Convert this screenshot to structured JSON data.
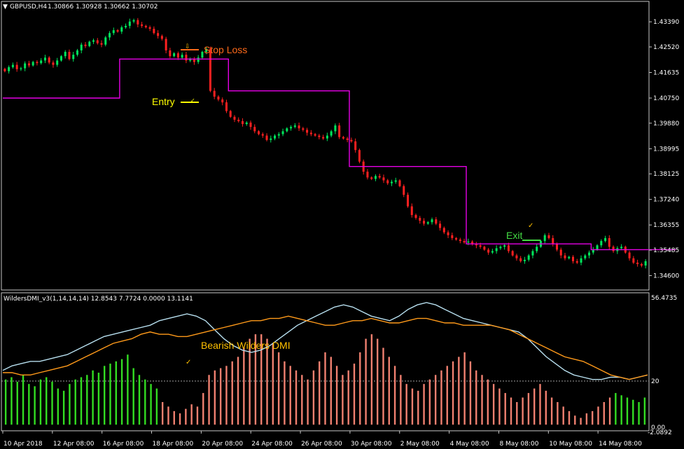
{
  "main_header": {
    "symbol_label": "GBPUSD,H4",
    "ohlc_label": "1.30866 1.30928 1.30662 1.30702"
  },
  "price_axis": [
    "1.43390",
    "1.42520",
    "1.41635",
    "1.40750",
    "1.39880",
    "1.38995",
    "1.38125",
    "1.37240",
    "1.36355",
    "1.35485",
    "1.34600"
  ],
  "annotations": {
    "stop_loss": "Stop Loss",
    "entry": "Entry",
    "exit": "Exit",
    "bearish_dmi": "Bearish Wilders DMI"
  },
  "indicator_header": {
    "label": "WildersDMI_v3(1,14,14,14) 12.8543 7.7724 0.0000 13.1141"
  },
  "indicator_axis": {
    "top": "56.4735",
    "level": "20",
    "bottom": "-2.0892",
    "bottom_alt": "0.00"
  },
  "time_axis": [
    "10 Apr 2018",
    "12 Apr 08:00",
    "16 Apr 08:00",
    "18 Apr 08:00",
    "20 Apr 08:00",
    "24 Apr 08:00",
    "26 Apr 08:00",
    "30 Apr 08:00",
    "2 May 08:00",
    "4 May 08:00",
    "8 May 08:00",
    "10 May 08:00",
    "14 May 08:00"
  ],
  "colors": {
    "background": "#000000",
    "bull_candle": "#00e65c",
    "bear_candle": "#ff2020",
    "stop_line": "#e600e6",
    "plus_di": "#b8e0f0",
    "minus_di": "#ff9a1a",
    "hist_bull": "#33dd22",
    "hist_bear": "#f08070",
    "stop_loss_text": "#ff6a1a",
    "entry_text": "#ffff00",
    "exit_text": "#44dd44",
    "bearish_text": "#ffc000"
  },
  "chart_data": [
    {
      "type": "candlestick",
      "title": "GBPUSD,H4",
      "ylim": [
        1.342,
        1.44
      ],
      "close": [
        1.4168,
        1.4182,
        1.419,
        1.4175,
        1.4178,
        1.4195,
        1.4188,
        1.42,
        1.4196,
        1.4205,
        1.4215,
        1.4198,
        1.419,
        1.4205,
        1.422,
        1.4235,
        1.421,
        1.4225,
        1.424,
        1.426,
        1.4255,
        1.427,
        1.4275,
        1.4265,
        1.426,
        1.4285,
        1.43,
        1.431,
        1.4305,
        1.432,
        1.4325,
        1.434,
        1.4345,
        1.433,
        1.4325,
        1.432,
        1.4315,
        1.43,
        1.429,
        1.428,
        1.424,
        1.422,
        1.423,
        1.4215,
        1.4225,
        1.4205,
        1.421,
        1.42,
        1.4215,
        1.4235,
        1.4245,
        1.41,
        1.408,
        1.407,
        1.406,
        1.403,
        1.401,
        1.4,
        1.3995,
        1.3985,
        1.399,
        1.3975,
        1.396,
        1.395,
        1.3945,
        1.393,
        1.3935,
        1.3945,
        1.395,
        1.396,
        1.397,
        1.3975,
        1.398,
        1.397,
        1.3965,
        1.3955,
        1.395,
        1.3945,
        1.394,
        1.3935,
        1.3945,
        1.396,
        1.398,
        1.394,
        1.3935,
        1.393,
        1.3925,
        1.3895,
        1.3855,
        1.382,
        1.38,
        1.3795,
        1.3805,
        1.38,
        1.379,
        1.378,
        1.3785,
        1.379,
        1.377,
        1.374,
        1.37,
        1.367,
        1.366,
        1.365,
        1.364,
        1.3645,
        1.3655,
        1.364,
        1.3625,
        1.361,
        1.36,
        1.359,
        1.3585,
        1.358,
        1.3575,
        1.3578,
        1.357,
        1.3565,
        1.356,
        1.355,
        1.354,
        1.3545,
        1.3555,
        1.356,
        1.3565,
        1.3545,
        1.353,
        1.352,
        1.351,
        1.3515,
        1.353,
        1.3545,
        1.356,
        1.358,
        1.36,
        1.359,
        1.357,
        1.355,
        1.353,
        1.352,
        1.3525,
        1.351,
        1.3505,
        1.352,
        1.353,
        1.354,
        1.355,
        1.3565,
        1.358,
        1.359,
        1.356,
        1.3545,
        1.3555,
        1.356,
        1.354,
        1.352,
        1.3505,
        1.35,
        1.3495,
        1.351
      ],
      "stop_levels": [
        {
          "from": 0,
          "to": 28,
          "value": 1.4075
        },
        {
          "from": 29,
          "to": 55,
          "value": 1.421
        },
        {
          "from": 56,
          "to": 85,
          "value": 1.41
        },
        {
          "from": 86,
          "to": 114,
          "value": 1.3838
        },
        {
          "from": 115,
          "to": 145,
          "value": 1.357
        },
        {
          "from": 146,
          "to": 166,
          "value": 1.355
        }
      ]
    },
    {
      "type": "line",
      "title": "WildersDMI_v3(1,14,14,14)",
      "ylim": [
        -2.0892,
        56.4735
      ],
      "level": 20,
      "series": [
        {
          "name": "+DI",
          "values": [
            24,
            26,
            27,
            28,
            28,
            29,
            30,
            31,
            33,
            35,
            37,
            39,
            40,
            41,
            42,
            43,
            44,
            46,
            47,
            48,
            49,
            48,
            46,
            42,
            38,
            35,
            33,
            32,
            33,
            35,
            38,
            41,
            44,
            46,
            48,
            50,
            52,
            53,
            52,
            50,
            48,
            47,
            46,
            48,
            51,
            53,
            54,
            53,
            51,
            49,
            47,
            46,
            45,
            44,
            43,
            42,
            41,
            38,
            34,
            30,
            27,
            24,
            22,
            21,
            20,
            20,
            21,
            21,
            20,
            21,
            22
          ]
        },
        {
          "name": "-DI",
          "values": [
            23,
            23,
            22,
            22,
            23,
            24,
            25,
            26,
            28,
            30,
            32,
            34,
            36,
            37,
            38,
            40,
            41,
            40,
            40,
            39,
            39,
            40,
            41,
            42,
            43,
            44,
            45,
            46,
            46,
            47,
            47,
            48,
            47,
            46,
            45,
            44,
            44,
            45,
            46,
            46,
            47,
            46,
            45,
            45,
            46,
            47,
            47,
            46,
            45,
            45,
            44,
            44,
            44,
            44,
            43,
            42,
            40,
            38,
            36,
            34,
            32,
            30,
            29,
            28,
            26,
            24,
            22,
            21,
            20,
            21,
            22
          ]
        }
      ],
      "histogram": [
        20,
        21,
        19,
        22,
        18,
        17,
        20,
        21,
        19,
        16,
        15,
        18,
        20,
        21,
        22,
        24,
        23,
        26,
        27,
        28,
        29,
        31,
        25,
        22,
        20,
        18,
        16,
        10,
        8,
        6,
        5,
        7,
        9,
        8,
        14,
        22,
        24,
        25,
        26,
        28,
        30,
        34,
        38,
        40,
        40,
        38,
        36,
        32,
        28,
        26,
        24,
        22,
        20,
        24,
        28,
        32,
        30,
        26,
        22,
        24,
        27,
        32,
        38,
        40,
        38,
        34,
        30,
        26,
        22,
        18,
        16,
        15,
        18,
        20,
        22,
        24,
        26,
        28,
        30,
        32,
        28,
        24,
        22,
        20,
        18,
        16,
        14,
        12,
        10,
        12,
        14,
        16,
        18,
        15,
        12,
        10,
        8,
        6,
        4,
        3,
        5,
        6,
        8,
        10,
        12,
        14,
        13,
        12,
        11,
        10,
        12
      ]
    }
  ]
}
